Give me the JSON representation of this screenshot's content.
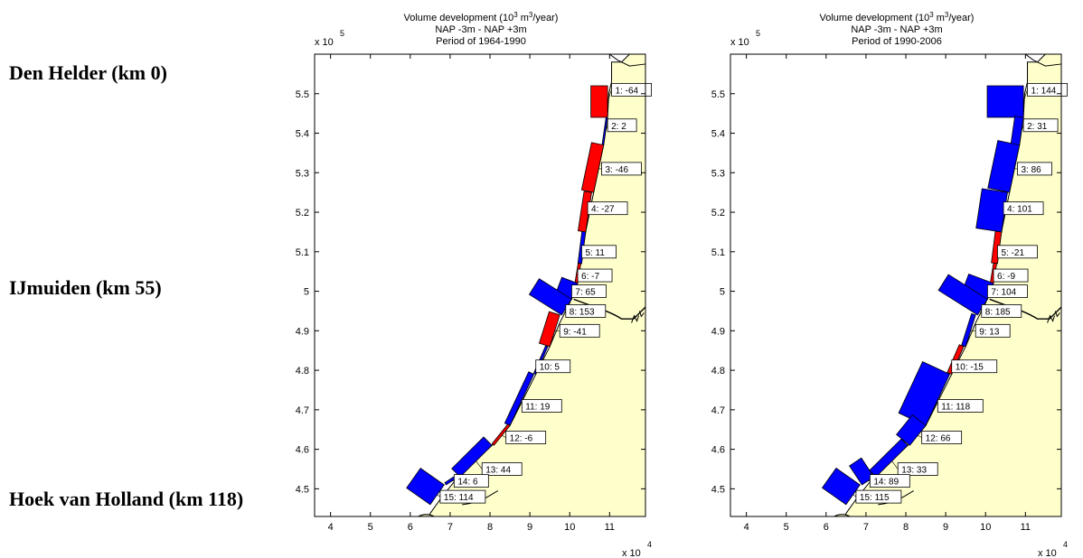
{
  "labels": {
    "den_helder": "Den Helder (km 0)",
    "ijmuiden": "IJmuiden (km 55)",
    "hoek": "Hoek van Holland (km 118)"
  },
  "colors": {
    "land": "#ffffcc",
    "positive": "#0000ff",
    "negative": "#ff0000"
  },
  "panels": [
    {
      "title_pre": "Volume development (10",
      "title_sup1": "3",
      "title_mid": " m",
      "title_sup2": "3",
      "title_post": "/year)",
      "subtitle": "NAP -3m - NAP +3m",
      "period": "Period of 1964-1990",
      "y_exp_base": "x 10",
      "y_exp_pow": "5",
      "x_exp_base": "x 10",
      "x_exp_pow": "4",
      "xticks": [
        "4",
        "5",
        "6",
        "7",
        "8",
        "9",
        "10",
        "11"
      ],
      "yticks": [
        "4.5",
        "4.6",
        "4.7",
        "4.8",
        "4.9",
        "5",
        "5.1",
        "5.2",
        "5.3",
        "5.4",
        "5.5"
      ],
      "sections": [
        {
          "label": "1: -64",
          "value": -64
        },
        {
          "label": "2: 2",
          "value": 2
        },
        {
          "label": "3: -46",
          "value": -46
        },
        {
          "label": "4: -27",
          "value": -27
        },
        {
          "label": "5: 11",
          "value": 11
        },
        {
          "label": "6: -7",
          "value": -7
        },
        {
          "label": "7: 65",
          "value": 65
        },
        {
          "label": "8: 153",
          "value": 153
        },
        {
          "label": "9: -41",
          "value": -41
        },
        {
          "label": "10: 5",
          "value": 5
        },
        {
          "label": "11: 19",
          "value": 19
        },
        {
          "label": "12: -6",
          "value": -6
        },
        {
          "label": "13: 44",
          "value": 44
        },
        {
          "label": "14: 6",
          "value": 6
        },
        {
          "label": "15: 114",
          "value": 114
        }
      ]
    },
    {
      "title_pre": "Volume development (10",
      "title_sup1": "3",
      "title_mid": " m",
      "title_sup2": "3",
      "title_post": "/year)",
      "subtitle": "NAP -3m - NAP +3m",
      "period": "Period of 1990-2006",
      "y_exp_base": "x 10",
      "y_exp_pow": "5",
      "x_exp_base": "x 10",
      "x_exp_pow": "4",
      "xticks": [
        "4",
        "5",
        "6",
        "7",
        "8",
        "9",
        "10",
        "11"
      ],
      "yticks": [
        "4.5",
        "4.6",
        "4.7",
        "4.8",
        "4.9",
        "5",
        "5.1",
        "5.2",
        "5.3",
        "5.4",
        "5.5"
      ],
      "sections": [
        {
          "label": "1: 144",
          "value": 144
        },
        {
          "label": "2: 31",
          "value": 31
        },
        {
          "label": "3: 86",
          "value": 86
        },
        {
          "label": "4: 101",
          "value": 101
        },
        {
          "label": "5: -21",
          "value": -21
        },
        {
          "label": "6: -9",
          "value": -9
        },
        {
          "label": "7: 104",
          "value": 104
        },
        {
          "label": "8: 185",
          "value": 185
        },
        {
          "label": "9: 13",
          "value": 13
        },
        {
          "label": "10: -15",
          "value": -15
        },
        {
          "label": "11: 118",
          "value": 118
        },
        {
          "label": "12: 66",
          "value": 66
        },
        {
          "label": "13: 33",
          "value": 33
        },
        {
          "label": "14: 89",
          "value": 89
        },
        {
          "label": "15: 115",
          "value": 115
        }
      ]
    }
  ]
}
